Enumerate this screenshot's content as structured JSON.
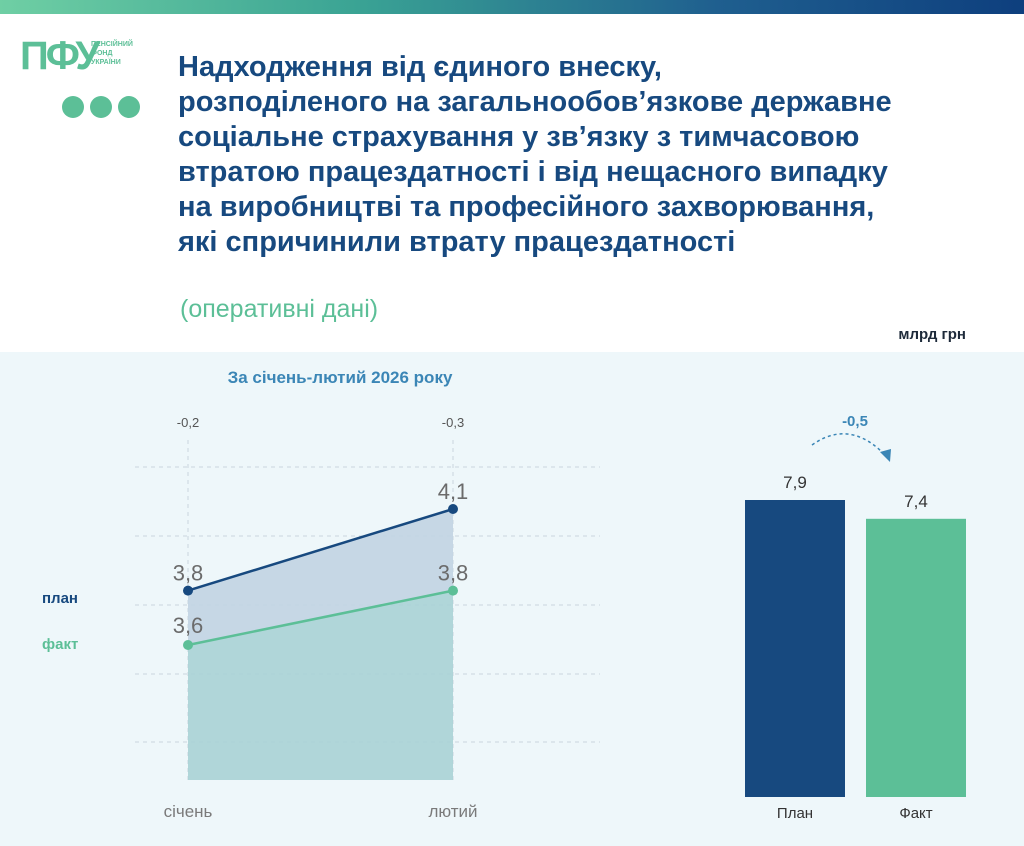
{
  "logo": {
    "mark": "ПФУ",
    "text_lines": [
      "ПЕНСІЙНИЙ",
      "ФОНД",
      "УКРАЇНИ"
    ]
  },
  "title_lines": [
    "Надходження від єдиного внеску,",
    "розподіленого на загальнообов’язкове державне",
    "соціальне страхування у зв’язку з тимчасовою",
    "втратою працездатності і від нещасного випадку",
    "на виробництві та професійного захворювання,",
    "які спричинили втрату працездатності"
  ],
  "subtitle": "(оперативні дані)",
  "unit": "млрд грн",
  "period_title": "За січень-лютий 2026 року",
  "colors": {
    "plan": "#17497f",
    "fact": "#5cbf97",
    "plan_area": "#c3d5e4",
    "fact_area": "#a9d2d5",
    "label_grey": "#6b6b6b"
  },
  "chart_data": [
    {
      "type": "line",
      "categories": [
        "січень",
        "лютий"
      ],
      "series": [
        {
          "name": "план",
          "values": [
            3.8,
            4.1
          ]
        },
        {
          "name": "факт",
          "values": [
            3.6,
            3.8
          ]
        }
      ],
      "deviation_labels": [
        "-0,2",
        "-0,3"
      ],
      "value_labels": {
        "план": [
          "3,8",
          "4,1"
        ],
        "факт": [
          "3,6",
          "3,8"
        ]
      },
      "grid": true,
      "legend": "left"
    },
    {
      "type": "bar",
      "categories": [
        "План",
        "Факт"
      ],
      "values": [
        7.9,
        7.4
      ],
      "value_labels": [
        "7,9",
        "7,4"
      ],
      "difference_label": "-0,5",
      "ylim": [
        0,
        7.9
      ]
    }
  ]
}
